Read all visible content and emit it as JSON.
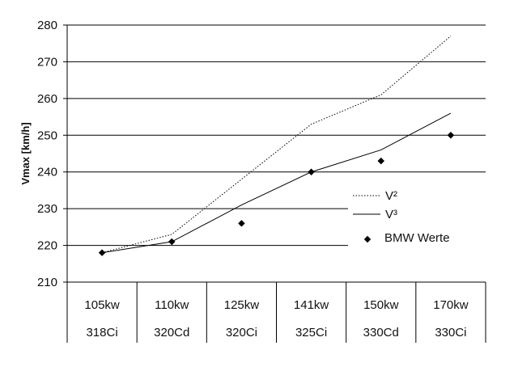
{
  "chart_data": {
    "type": "line",
    "title": "",
    "xlabel": "",
    "ylabel": "Vmax [km/h]",
    "ylim": [
      210,
      280
    ],
    "yticks": [
      210,
      220,
      230,
      240,
      250,
      260,
      270,
      280
    ],
    "grid": true,
    "legend_position": "right",
    "categories": [
      {
        "power": "105kw",
        "model": "318Ci"
      },
      {
        "power": "110kw",
        "model": "320Cd"
      },
      {
        "power": "125kw",
        "model": "320Ci"
      },
      {
        "power": "141kw",
        "model": "325Ci"
      },
      {
        "power": "150kw",
        "model": "330Cd"
      },
      {
        "power": "170kw",
        "model": "330Ci"
      }
    ],
    "series": [
      {
        "name": "V²",
        "style": "dotted",
        "values": [
          218,
          223,
          238,
          253,
          261,
          277
        ]
      },
      {
        "name": "V³",
        "style": "solid",
        "values": [
          218,
          221,
          231,
          240,
          246,
          256
        ]
      },
      {
        "name": "BMW Werte",
        "style": "markers",
        "values": [
          218,
          221,
          226,
          240,
          243,
          250
        ]
      }
    ]
  }
}
